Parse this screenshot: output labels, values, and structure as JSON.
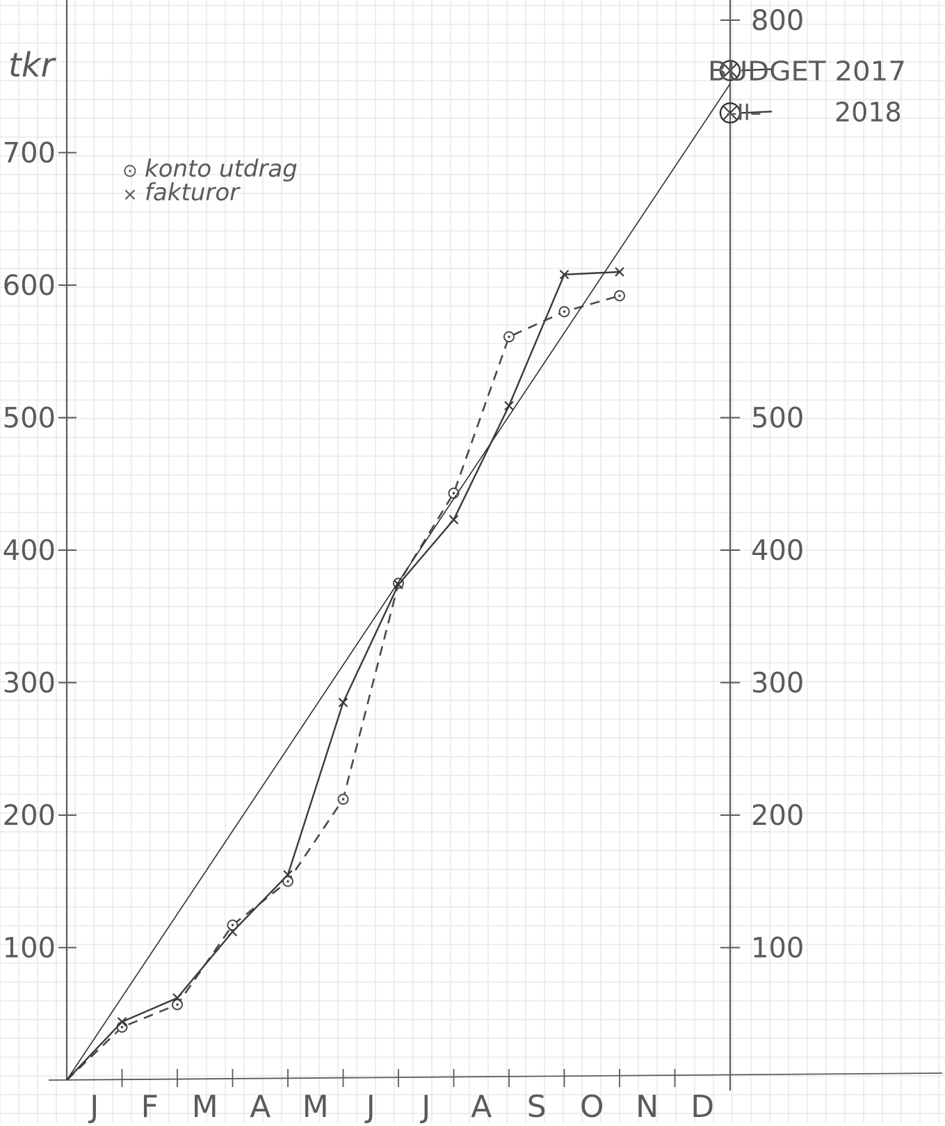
{
  "chart_data": {
    "type": "line",
    "ylabel": "tkr",
    "legend": {
      "placement": "top-left",
      "entries": [
        {
          "marker": "⊙",
          "label": "konto utdrag"
        },
        {
          "marker": "×",
          "label": "fakturor"
        }
      ]
    },
    "xlim": [
      0,
      12
    ],
    "ylim": [
      0,
      800
    ],
    "x_tick_labels": [
      "J",
      "F",
      "M",
      "A",
      "M",
      "J",
      "J",
      "A",
      "S",
      "O",
      "N",
      "D"
    ],
    "left_y_ticks": [
      100,
      200,
      300,
      400,
      500,
      600,
      700
    ],
    "right_y_ticks": [
      100,
      200,
      300,
      400,
      500,
      800
    ],
    "grid": true,
    "series": [
      {
        "name": "konto utdrag",
        "marker": "circle",
        "dash": "dashed",
        "x": [
          0,
          1,
          2,
          3,
          4,
          5,
          6,
          7,
          8,
          9,
          10
        ],
        "y": [
          0,
          40,
          57,
          117,
          150,
          212,
          375,
          443,
          561,
          580,
          592
        ]
      },
      {
        "name": "fakturor",
        "marker": "x",
        "dash": "solid",
        "x": [
          0,
          1,
          2,
          3,
          4,
          5,
          6,
          7,
          8,
          9,
          10
        ],
        "y": [
          0,
          44,
          62,
          112,
          155,
          285,
          374,
          423,
          509,
          608,
          610
        ]
      },
      {
        "marker": "none",
        "dash": "solid",
        "x": [
          0,
          12
        ],
        "y": [
          0,
          752
        ]
      }
    ],
    "annotations": [
      {
        "x": 12,
        "y": 762,
        "marker": "circle-x",
        "text": "BUDGET 2017"
      },
      {
        "x": 12,
        "y": 730,
        "marker": "circle-x",
        "text": "–II–",
        "text2": "2018"
      }
    ]
  }
}
